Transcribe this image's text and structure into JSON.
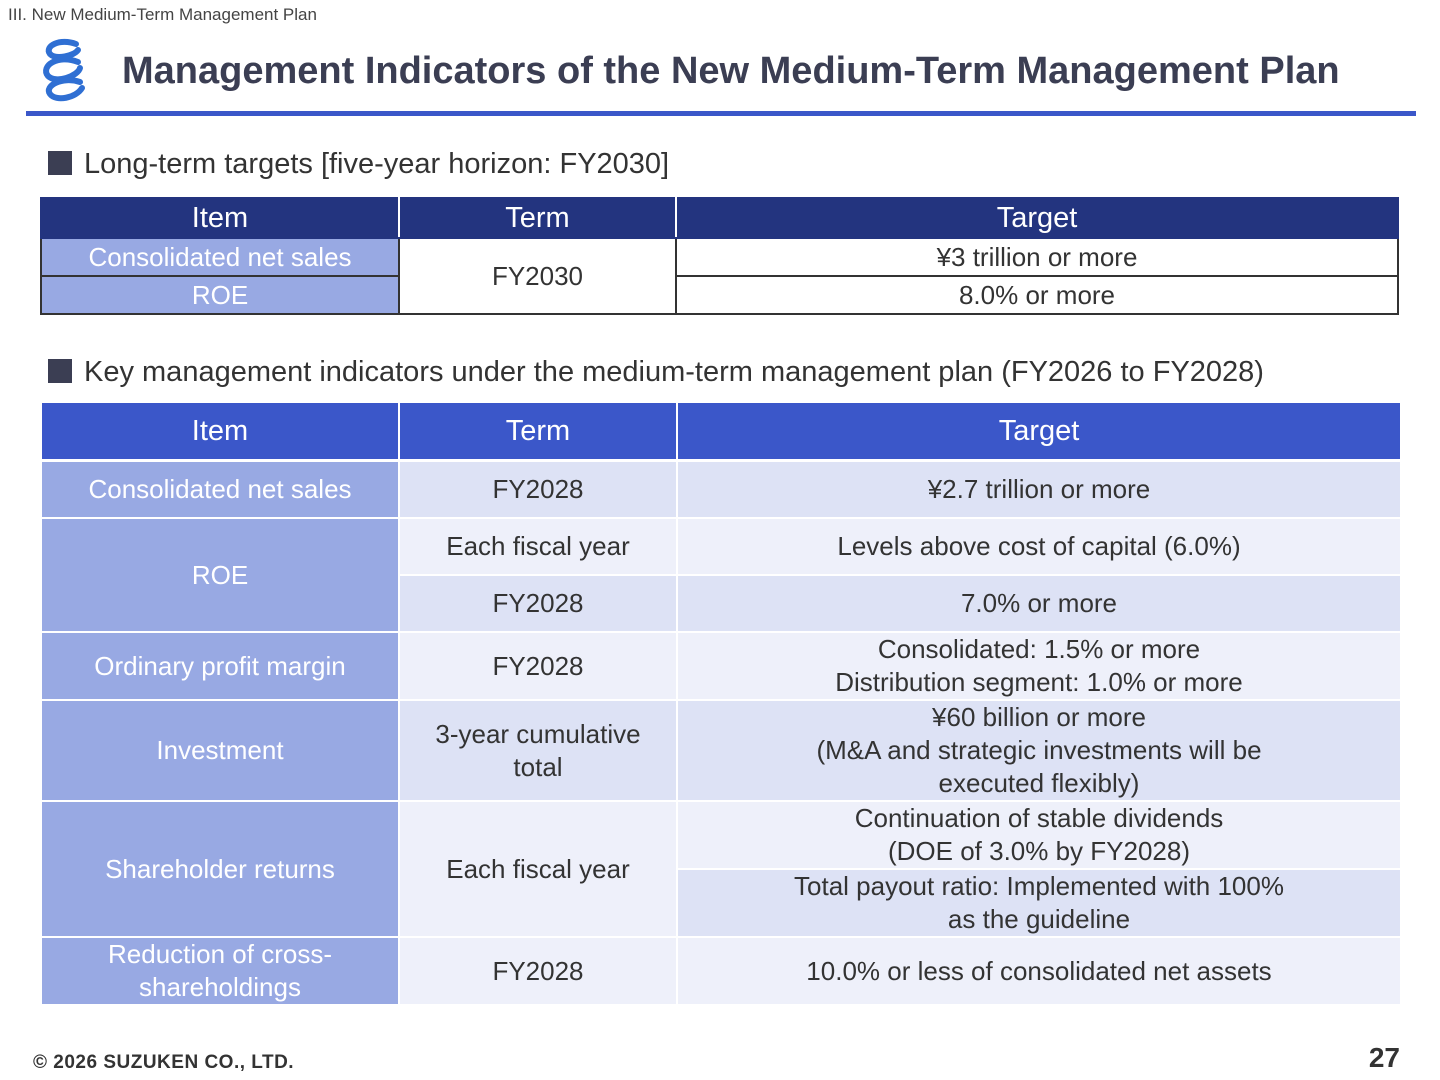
{
  "header": {
    "breadcrumb": "III. New Medium-Term Management Plan",
    "title": "Management Indicators of the New Medium-Term Management Plan",
    "logo_icon": "company-logo-icon"
  },
  "colors": {
    "title_rule": "#3b57c9",
    "table1_header": "#23347f",
    "table2_header": "#3b57c9",
    "item_cell": "#98a9e3",
    "row_dark": "#dde2f5",
    "row_light": "#eef0fa"
  },
  "section1": {
    "heading": "Long-term targets [five-year horizon: FY2030]",
    "table": {
      "headers": [
        "Item",
        "Term",
        "Target"
      ],
      "rows": [
        {
          "item": "Consolidated net sales",
          "term": "FY2030",
          "target": "¥3 trillion or more"
        },
        {
          "item": "ROE",
          "target": "8.0% or more"
        }
      ]
    }
  },
  "section2": {
    "heading": "Key management indicators under the medium-term management plan (FY2026 to FY2028)",
    "table": {
      "headers": [
        "Item",
        "Term",
        "Target"
      ],
      "rows": [
        {
          "item": "Consolidated net sales",
          "term": "FY2028",
          "target": "¥2.7 trillion or more"
        },
        {
          "item": "ROE",
          "term": "Each fiscal year",
          "target": "Levels above cost of capital (6.0%)"
        },
        {
          "term": "FY2028",
          "target": "7.0% or more"
        },
        {
          "item": "Ordinary profit margin",
          "term": "FY2028",
          "target_lines": [
            "Consolidated: 1.5% or more",
            "Distribution segment: 1.0% or more"
          ]
        },
        {
          "item": "Investment",
          "term_lines": [
            "3-year cumulative",
            "total"
          ],
          "target_lines": [
            "¥60 billion or more",
            "(M&A and strategic investments will be",
            "executed flexibly)"
          ]
        },
        {
          "item": "Shareholder returns",
          "term": "Each fiscal year",
          "target_lines": [
            "Continuation of stable dividends",
            "(DOE of 3.0% by FY2028)"
          ]
        },
        {
          "target_lines": [
            "Total payout ratio: Implemented with 100%",
            "as the guideline"
          ]
        },
        {
          "item_lines": [
            "Reduction of cross-",
            "shareholdings"
          ],
          "term": "FY2028",
          "target": "10.0% or less of consolidated net assets"
        }
      ]
    }
  },
  "footer": {
    "copyright": "© 2026 SUZUKEN CO., LTD.",
    "page_number": "27"
  }
}
